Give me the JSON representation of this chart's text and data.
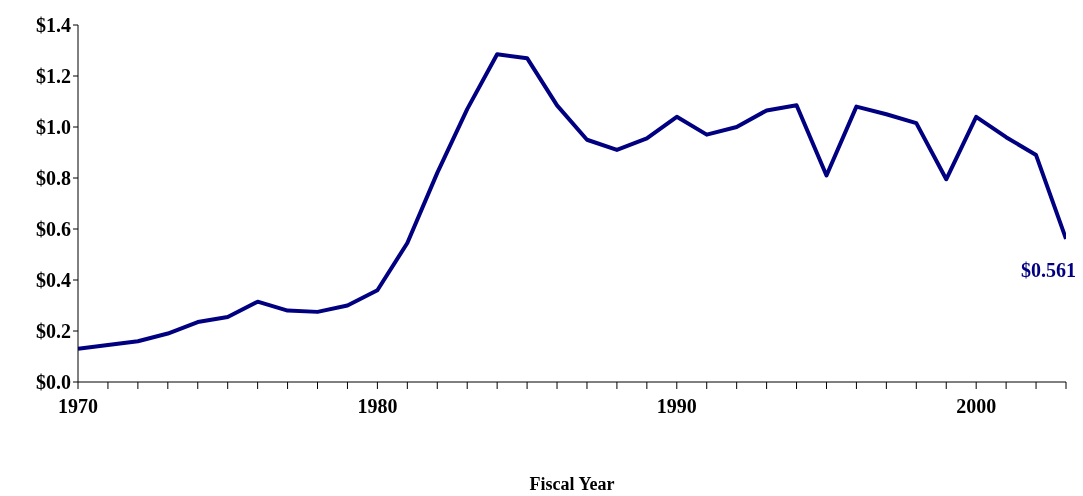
{
  "chart_data": {
    "type": "line",
    "xlabel": "Fiscal Year",
    "x": [
      1970,
      1971,
      1972,
      1973,
      1974,
      1975,
      1976,
      1977,
      1978,
      1979,
      1980,
      1981,
      1982,
      1983,
      1984,
      1985,
      1986,
      1987,
      1988,
      1989,
      1990,
      1991,
      1992,
      1993,
      1994,
      1995,
      1996,
      1997,
      1998,
      1999,
      2000,
      2001,
      2002,
      2003
    ],
    "series": [
      {
        "color": "#000080",
        "values": [
          0.13,
          0.145,
          0.16,
          0.19,
          0.235,
          0.255,
          0.315,
          0.28,
          0.275,
          0.3,
          0.36,
          0.545,
          0.82,
          1.07,
          1.285,
          1.27,
          1.085,
          0.95,
          0.91,
          0.955,
          1.04,
          0.97,
          1.0,
          1.065,
          1.085,
          0.81,
          1.08,
          1.05,
          1.015,
          0.795,
          1.04,
          0.96,
          0.89,
          0.561
        ]
      }
    ],
    "xlim": [
      1970,
      2003
    ],
    "xticks": [
      1970,
      {
        "value": 1971,
        "label": null
      },
      {
        "value": 1972,
        "label": null
      },
      {
        "value": 1973,
        "label": null
      },
      {
        "value": 1974,
        "label": null
      },
      {
        "value": 1975,
        "label": null
      },
      {
        "value": 1976,
        "label": null
      },
      {
        "value": 1977,
        "label": null
      },
      {
        "value": 1978,
        "label": null
      },
      {
        "value": 1979,
        "label": null
      },
      1980,
      {
        "value": 1981,
        "label": null
      },
      {
        "value": 1982,
        "label": null
      },
      {
        "value": 1983,
        "label": null
      },
      {
        "value": 1984,
        "label": null
      },
      {
        "value": 1985,
        "label": null
      },
      {
        "value": 1986,
        "label": null
      },
      {
        "value": 1987,
        "label": null
      },
      {
        "value": 1988,
        "label": null
      },
      {
        "value": 1989,
        "label": null
      },
      1990,
      {
        "value": 1991,
        "label": null
      },
      {
        "value": 1992,
        "label": null
      },
      {
        "value": 1993,
        "label": null
      },
      {
        "value": 1994,
        "label": null
      },
      {
        "value": 1995,
        "label": null
      },
      {
        "value": 1996,
        "label": null
      },
      {
        "value": 1997,
        "label": null
      },
      {
        "value": 1998,
        "label": null
      },
      {
        "value": 1999,
        "label": null
      },
      2000,
      {
        "value": 2001,
        "label": null
      },
      {
        "value": 2002,
        "label": null
      },
      {
        "value": 2003,
        "label": null
      }
    ],
    "ylim": [
      0,
      1.4
    ],
    "yticks": [
      {
        "value": 0,
        "label": "$0.0"
      },
      {
        "value": 0.2,
        "label": "$0.2"
      },
      {
        "value": 0.4,
        "label": "$0.4"
      },
      {
        "value": 0.6,
        "label": "$0.6"
      },
      {
        "value": 0.8,
        "label": "$0.8"
      },
      {
        "value": 1.0,
        "label": "$1.0"
      },
      {
        "value": 1.2,
        "label": "$1.2"
      },
      {
        "value": 1.4,
        "label": "$1.4"
      }
    ],
    "annotations": [
      {
        "text": "$0.561",
        "x": 2003,
        "y": 0.561
      }
    ],
    "grid": false,
    "legend": false,
    "marker": "none",
    "line_style": "solid"
  }
}
